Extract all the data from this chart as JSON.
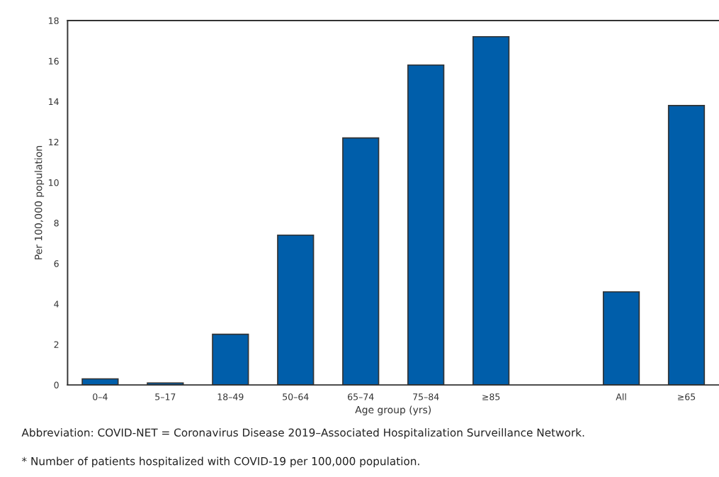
{
  "chart_data": {
    "type": "bar",
    "xlabel": "Age group (yrs)",
    "ylabel": "Per 100,000 population",
    "categories": [
      "0–4",
      "5–17",
      "18–49",
      "50–64",
      "65–74",
      "75–84",
      "≥85",
      null,
      "All",
      "≥65"
    ],
    "values": [
      0.3,
      0.1,
      2.5,
      7.4,
      12.2,
      15.8,
      17.2,
      null,
      4.6,
      13.8
    ],
    "color": "#005eaa",
    "ylim": [
      0,
      18
    ],
    "yticks": [
      0,
      2,
      4,
      6,
      8,
      10,
      12,
      14,
      16,
      18
    ],
    "grid": false,
    "annotations": [
      "Abbreviation: COVID-NET = Coronavirus Disease 2019–Associated Hospitalization Surveillance Network.",
      "* Number of patients hospitalized with COVID-19 per 100,000 population."
    ]
  }
}
